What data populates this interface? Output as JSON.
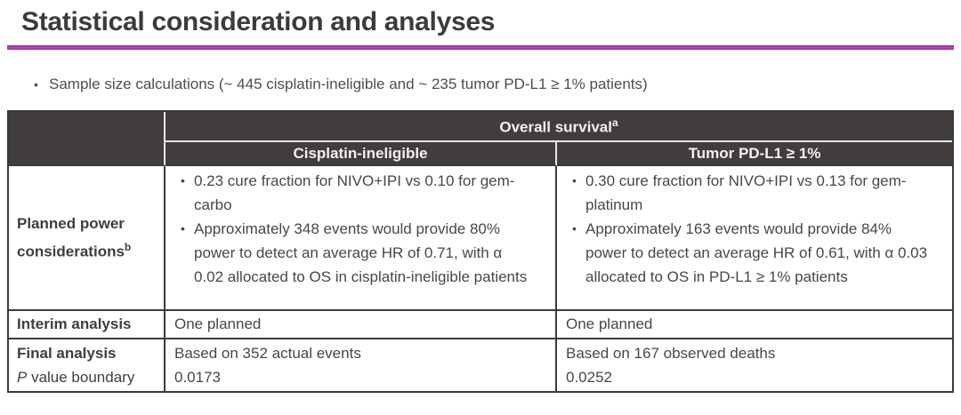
{
  "slide": {
    "title": "Statistical consideration and analyses",
    "bullet_text": "Sample size calculations (~ 445 cisplatin-ineligible and ~ 235 tumor PD-L1 ≥ 1% patients)"
  },
  "icons": {
    "bullet": "•"
  },
  "colors": {
    "accent_rule": "#A42DA2",
    "table_header_bg": "#413D3D",
    "table_header_text": "#F3F1EF",
    "table_border": "#3E3A3A",
    "body_text": "#474747"
  },
  "table": {
    "header": {
      "group_label": "Overall survival",
      "group_superscript": "a",
      "col_left": "Cisplatin-ineligible",
      "col_right": "Tumor PD-L1 ≥ 1%"
    },
    "planned_power": {
      "label": "Planned power considerations",
      "label_superscript": "b",
      "cisplatin_bullets": [
        "0.23 cure fraction for NIVO+IPI vs 0.10 for gem-carbo",
        "Approximately 348 events would provide 80% power to detect an average HR of 0.71, with α 0.02 allocated to OS in cisplatin-ineligible patients"
      ],
      "pdl1_bullets": [
        "0.30 cure fraction for NIVO+IPI vs 0.13 for gem-platinum",
        "Approximately 163 events would provide 84% power to detect an average HR of 0.61, with α 0.03 allocated to OS in PD-L1 ≥ 1% patients"
      ]
    },
    "interim": {
      "label": "Interim analysis",
      "cisplatin_value": "One planned",
      "pdl1_value": "One planned"
    },
    "final": {
      "label_line1": "Final analysis",
      "label_line2_italic": "P",
      "label_line2_rest": " value boundary",
      "cisplatin_line1": "Based on 352 actual events",
      "cisplatin_line2": "0.0173",
      "pdl1_line1": "Based on 167 observed deaths",
      "pdl1_line2": "0.0252"
    }
  }
}
